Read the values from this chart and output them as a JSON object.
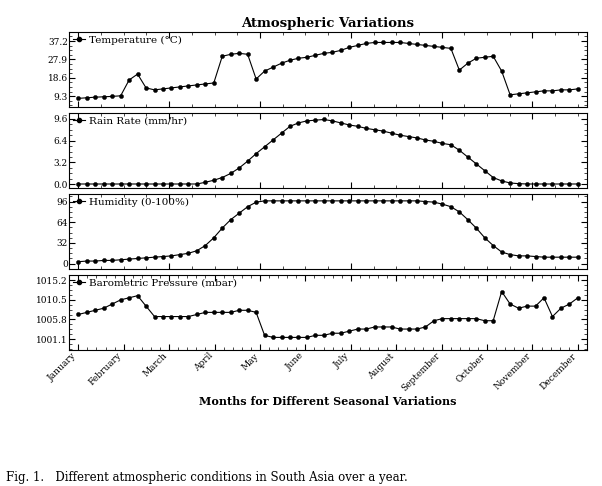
{
  "title": "Atmospheric Variations",
  "xlabel": "Months for Different Seasonal Variations",
  "caption": "Fig. 1.   Different atmospheric conditions in South Asia over a year.",
  "months": [
    "January",
    "February",
    "March",
    "April",
    "May",
    "June",
    "July",
    "August",
    "September",
    "October",
    "November",
    "December"
  ],
  "temperature": {
    "label": "Temperature (°C)",
    "values": [
      8.2,
      8.5,
      8.8,
      9.0,
      9.2,
      9.5,
      17.5,
      20.5,
      13.5,
      12.5,
      13.0,
      13.5,
      14.0,
      14.5,
      15.0,
      15.5,
      16.0,
      29.5,
      30.5,
      31.0,
      30.5,
      18.0,
      22.0,
      24.0,
      26.0,
      27.5,
      28.5,
      29.0,
      30.0,
      31.0,
      31.5,
      32.5,
      34.0,
      35.0,
      36.0,
      36.5,
      36.5,
      36.5,
      36.5,
      36.0,
      35.5,
      35.0,
      34.5,
      34.0,
      33.5,
      22.5,
      26.0,
      28.5,
      29.0,
      29.5,
      22.0,
      10.0,
      10.5,
      11.0,
      11.5,
      12.0,
      12.0,
      12.5,
      12.5,
      13.0
    ],
    "ylim": [
      4,
      42
    ],
    "yticks": [
      9.3,
      18.6,
      27.9,
      37.2
    ]
  },
  "rain": {
    "label": "Rain Rate (mm/hr)",
    "values": [
      0.05,
      0.05,
      0.05,
      0.05,
      0.05,
      0.05,
      0.05,
      0.05,
      0.05,
      0.05,
      0.05,
      0.05,
      0.05,
      0.05,
      0.05,
      0.3,
      0.6,
      1.0,
      1.6,
      2.4,
      3.4,
      4.5,
      5.5,
      6.5,
      7.5,
      8.5,
      9.0,
      9.3,
      9.4,
      9.5,
      9.3,
      9.0,
      8.7,
      8.5,
      8.2,
      8.0,
      7.8,
      7.5,
      7.2,
      7.0,
      6.8,
      6.5,
      6.3,
      6.0,
      5.8,
      5.0,
      4.0,
      3.0,
      2.0,
      1.0,
      0.5,
      0.2,
      0.1,
      0.05,
      0.05,
      0.05,
      0.05,
      0.05,
      0.05,
      0.05
    ],
    "ylim": [
      -0.5,
      10.5
    ],
    "yticks": [
      0.0,
      3.2,
      6.4,
      9.6
    ]
  },
  "humidity": {
    "label": "Humidity (0-100%)",
    "values": [
      3,
      4,
      4,
      5,
      5,
      6,
      7,
      8,
      9,
      10,
      11,
      12,
      14,
      16,
      20,
      28,
      40,
      55,
      68,
      78,
      88,
      95,
      97,
      97,
      97,
      97,
      97,
      97,
      97,
      97,
      97,
      97,
      97,
      97,
      97,
      97,
      97,
      97,
      97,
      97,
      97,
      96,
      95,
      92,
      88,
      80,
      68,
      55,
      40,
      28,
      18,
      14,
      12,
      12,
      11,
      10,
      10,
      10,
      10,
      10
    ],
    "ylim": [
      -8,
      108
    ],
    "yticks": [
      0,
      32,
      64,
      96
    ]
  },
  "pressure": {
    "label": "Barometric Pressure (mbar)",
    "values": [
      1007.0,
      1007.5,
      1008.0,
      1008.5,
      1009.5,
      1010.5,
      1011.0,
      1011.5,
      1009.0,
      1006.5,
      1006.5,
      1006.5,
      1006.5,
      1006.5,
      1007.0,
      1007.5,
      1007.5,
      1007.5,
      1007.5,
      1008.0,
      1008.0,
      1007.5,
      1002.0,
      1001.5,
      1001.5,
      1001.5,
      1001.5,
      1001.5,
      1002.0,
      1002.0,
      1002.5,
      1002.5,
      1003.0,
      1003.5,
      1003.5,
      1004.0,
      1004.0,
      1004.0,
      1003.5,
      1003.5,
      1003.5,
      1004.0,
      1005.5,
      1006.0,
      1006.0,
      1006.0,
      1006.0,
      1006.0,
      1005.5,
      1005.5,
      1012.5,
      1009.5,
      1008.5,
      1009.0,
      1009.0,
      1011.0,
      1006.5,
      1008.5,
      1009.5,
      1011.0
    ],
    "ylim": [
      998.5,
      1016.5
    ],
    "yticks": [
      1001.1,
      1005.8,
      1010.5,
      1015.2
    ]
  },
  "n_points": 60,
  "line_color": "black",
  "marker": "o",
  "markersize": 3.0,
  "linewidth": 0.8,
  "tick_fontsize": 6.5,
  "label_fontsize": 7.5,
  "title_fontsize": 9.5
}
